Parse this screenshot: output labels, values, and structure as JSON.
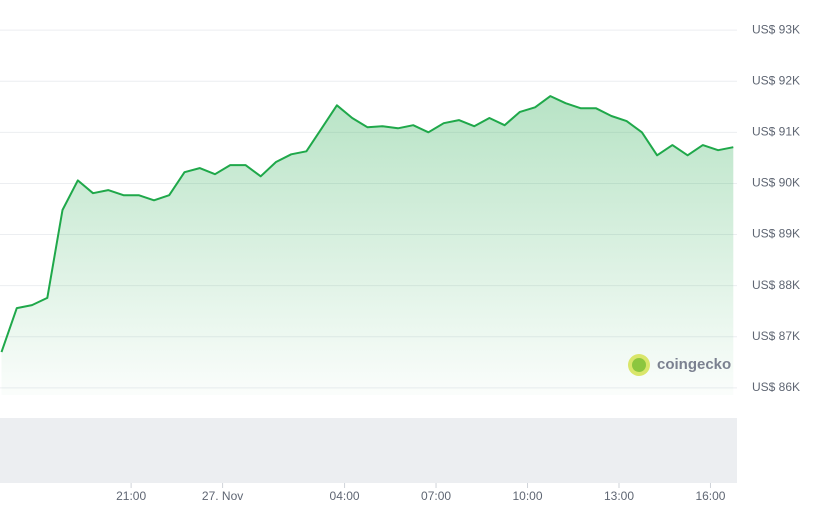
{
  "chart_data": {
    "type": "area-line",
    "watermark": "coingecko",
    "color": "#1fa84a",
    "grid": true,
    "xlim": [
      16.7,
      40.87
    ],
    "ylim": [
      85860,
      93590
    ],
    "xticks": [
      {
        "value": 21,
        "label": "21:00"
      },
      {
        "value": 24,
        "label": "27. Nov"
      },
      {
        "value": 28,
        "label": "04:00"
      },
      {
        "value": 31,
        "label": "07:00"
      },
      {
        "value": 34,
        "label": "10:00"
      },
      {
        "value": 37,
        "label": "13:00"
      },
      {
        "value": 40,
        "label": "16:00"
      }
    ],
    "yticks": [
      {
        "value": 86000,
        "label": "US$ 86K"
      },
      {
        "value": 87000,
        "label": "US$ 87K"
      },
      {
        "value": 88000,
        "label": "US$ 88K"
      },
      {
        "value": 89000,
        "label": "US$ 89K"
      },
      {
        "value": 90000,
        "label": "US$ 90K"
      },
      {
        "value": 91000,
        "label": "US$ 91K"
      },
      {
        "value": 92000,
        "label": "US$ 92K"
      },
      {
        "value": 93000,
        "label": "US$ 93K"
      }
    ],
    "x": [
      16.75,
      17.25,
      17.75,
      18.25,
      18.75,
      19.25,
      19.75,
      20.25,
      20.75,
      21.25,
      21.75,
      22.25,
      22.75,
      23.25,
      23.75,
      24.25,
      24.75,
      25.25,
      25.75,
      26.25,
      26.75,
      27.25,
      27.75,
      28.25,
      28.75,
      29.25,
      29.75,
      30.25,
      30.75,
      31.25,
      31.75,
      32.25,
      32.75,
      33.25,
      33.75,
      34.25,
      34.75,
      35.25,
      35.75,
      36.25,
      36.75,
      37.25,
      37.75,
      38.25,
      38.75,
      39.25,
      39.75,
      40.25,
      40.75
    ],
    "values": [
      86700,
      87560,
      87620,
      87760,
      89480,
      90060,
      89810,
      89870,
      89770,
      89770,
      89670,
      89770,
      90220,
      90300,
      90180,
      90360,
      90360,
      90140,
      90420,
      90570,
      90630,
      91080,
      91530,
      91280,
      91100,
      91120,
      91080,
      91140,
      91000,
      91180,
      91240,
      91120,
      91280,
      91140,
      91400,
      91490,
      91710,
      91570,
      91470,
      91470,
      91320,
      91220,
      91000,
      90550,
      90750,
      90550,
      90750,
      90650,
      90710
    ]
  }
}
